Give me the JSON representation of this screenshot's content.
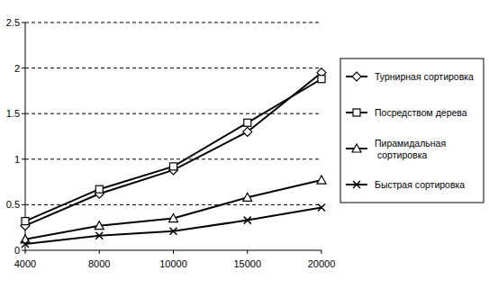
{
  "chart_data": {
    "type": "line",
    "categories": [
      "4000",
      "8000",
      "10000",
      "15000",
      "20000"
    ],
    "series": [
      {
        "name": "Турнирная сортировка",
        "color": "#000000",
        "marker": "diamond",
        "values": [
          0.27,
          0.62,
          0.88,
          1.3,
          1.95
        ]
      },
      {
        "name": "Посредством дерева",
        "color": "#000000",
        "marker": "square",
        "values": [
          0.32,
          0.67,
          0.92,
          1.4,
          1.88
        ]
      },
      {
        "name": "Пирамидальная сортировка",
        "color": "#000000",
        "marker": "triangle",
        "values": [
          0.12,
          0.27,
          0.35,
          0.58,
          0.77
        ]
      },
      {
        "name": "Быстрая сортировка",
        "color": "#000000",
        "marker": "x",
        "values": [
          0.07,
          0.16,
          0.21,
          0.33,
          0.47
        ]
      }
    ],
    "ylim": [
      0,
      2.5
    ],
    "yticks": [
      0,
      0.5,
      1,
      1.5,
      2,
      2.5
    ],
    "grid": true,
    "legend": "right"
  }
}
